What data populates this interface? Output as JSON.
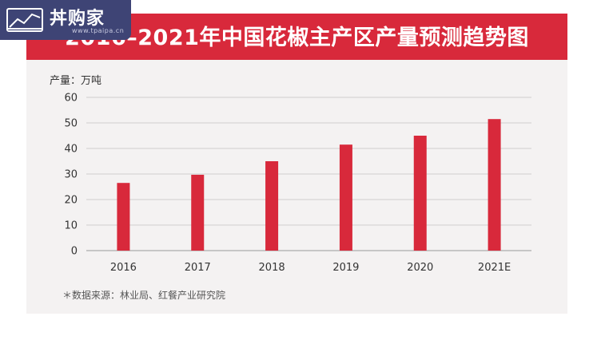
{
  "header": {
    "title": "2016–2021年中国花椒主产区产量预测趋势图"
  },
  "logo": {
    "text": "丼购家",
    "url": "www.tpaipa.cn"
  },
  "chart_data": {
    "type": "bar",
    "title": "2016–2021年中国花椒主产区产量预测趋势图",
    "ylabel": "产量：万吨",
    "xlabel": "",
    "categories": [
      "2016",
      "2017",
      "2018",
      "2019",
      "2020",
      "2021E"
    ],
    "values": [
      26.5,
      29.7,
      35.0,
      41.5,
      45.0,
      51.5
    ],
    "ylim": [
      0,
      60
    ],
    "yticks": [
      0,
      10,
      20,
      30,
      40,
      50,
      60
    ],
    "grid": true,
    "bar_color": "#d8293b"
  },
  "footer": {
    "source": "＊数据来源：林业局、红餐产业研究院"
  },
  "colors": {
    "accent": "#d8293b",
    "badge": "#3e4475"
  }
}
